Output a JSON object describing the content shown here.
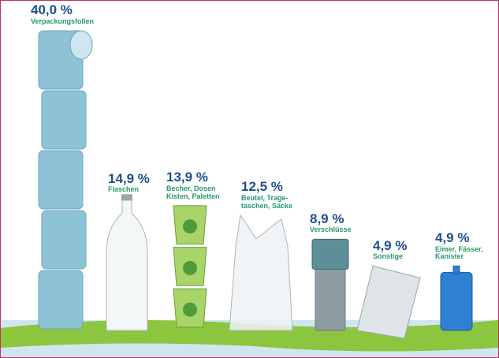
{
  "chart_data": {
    "type": "pictograph",
    "categories": [
      "Verpackungsfolien",
      "Flaschen",
      "Becher, Dosen\nKisten, Paletten",
      "Beutel, Trage-\ntaschen, Säcke",
      "Verschlüsse",
      "Sonstige",
      "Eimer, Fässer,\nKanister"
    ],
    "values": [
      40.0,
      14.9,
      13.9,
      12.5,
      8.9,
      4.9,
      4.9
    ],
    "value_labels": [
      "40,0 %",
      "14,9 %",
      "13,9 %",
      "12,5 %",
      "8,9 %",
      "4,9 %",
      "4,9 %"
    ],
    "colors": [
      "#8ec3d6",
      "#f4f7f8",
      "#a8d46a",
      "#eef2f4",
      "#8d9ba2",
      "#dfe4e6",
      "#2f80d2"
    ]
  }
}
